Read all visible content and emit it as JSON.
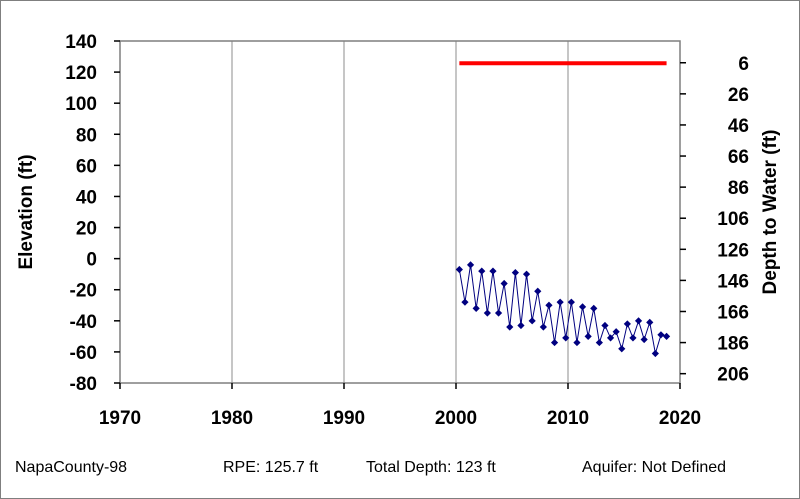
{
  "chart_data": {
    "type": "line",
    "left_axis": {
      "label": "Elevation (ft)",
      "range": [
        -80,
        140
      ],
      "ticks": [
        140,
        120,
        100,
        80,
        60,
        40,
        20,
        0,
        -20,
        -40,
        -60,
        -80
      ]
    },
    "right_axis": {
      "label": "Depth to Water (ft)",
      "ticks": [
        6,
        26,
        46,
        66,
        86,
        106,
        126,
        146,
        166,
        186,
        206
      ]
    },
    "x_axis": {
      "range": [
        1970,
        2020
      ],
      "ticks": [
        1970,
        1980,
        1990,
        2000,
        2010,
        2020
      ]
    },
    "grid": "vertical",
    "reference_line": {
      "from_year": 2000.3,
      "to_year": 2018.8,
      "elevation": 125.7,
      "color": "#ff0000"
    },
    "series": [
      {
        "color": "#000080",
        "marker": "diamond",
        "points": [
          [
            2000.3,
            -7
          ],
          [
            2000.8,
            -28
          ],
          [
            2001.3,
            -4
          ],
          [
            2001.8,
            -32
          ],
          [
            2002.3,
            -8
          ],
          [
            2002.8,
            -35
          ],
          [
            2003.3,
            -8
          ],
          [
            2003.8,
            -35
          ],
          [
            2004.3,
            -16
          ],
          [
            2004.8,
            -44
          ],
          [
            2005.3,
            -9
          ],
          [
            2005.8,
            -43
          ],
          [
            2006.3,
            -10
          ],
          [
            2006.8,
            -40
          ],
          [
            2007.3,
            -21
          ],
          [
            2007.8,
            -44
          ],
          [
            2008.3,
            -30
          ],
          [
            2008.8,
            -54
          ],
          [
            2009.3,
            -28
          ],
          [
            2009.8,
            -51
          ],
          [
            2010.3,
            -28
          ],
          [
            2010.8,
            -54
          ],
          [
            2011.3,
            -31
          ],
          [
            2011.8,
            -50
          ],
          [
            2012.3,
            -32
          ],
          [
            2012.8,
            -54
          ],
          [
            2013.3,
            -43
          ],
          [
            2013.8,
            -51
          ],
          [
            2014.3,
            -47
          ],
          [
            2014.8,
            -58
          ],
          [
            2015.3,
            -42
          ],
          [
            2015.8,
            -51
          ],
          [
            2016.3,
            -40
          ],
          [
            2016.8,
            -52
          ],
          [
            2017.3,
            -41
          ],
          [
            2017.8,
            -61
          ],
          [
            2018.3,
            -49
          ],
          [
            2018.8,
            -50
          ]
        ]
      }
    ]
  },
  "footer": {
    "well": "NapaCounty-98",
    "rpe": "RPE: 125.7 ft",
    "total_depth": "Total Depth: 123 ft",
    "aquifer": "Aquifer: Not Defined"
  }
}
